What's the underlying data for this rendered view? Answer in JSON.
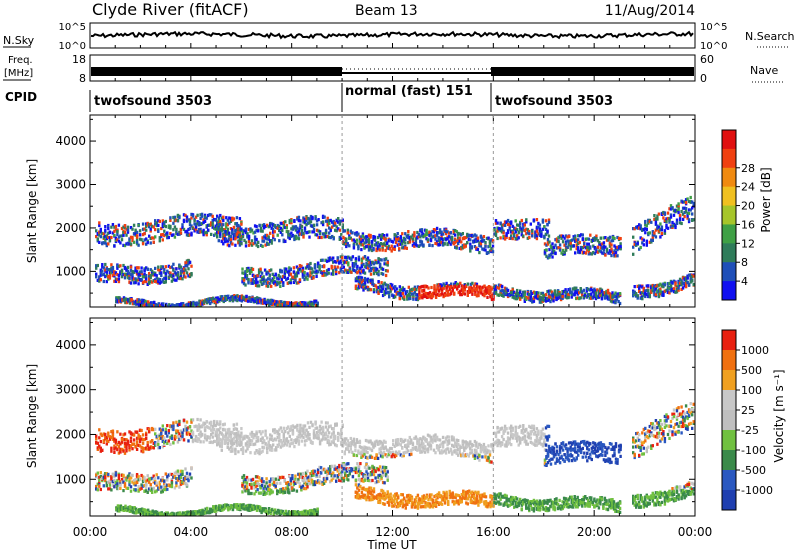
{
  "header": {
    "station": "Clyde River (fitACF)",
    "beam": "Beam 13",
    "date": "11/Aug/2014"
  },
  "top_panels": {
    "nsky_label": "N.Sky",
    "nsearch_label": "N.Search",
    "nsky_ticks": [
      "10^5",
      "10^0"
    ],
    "nsearch_ticks": [
      "10^5",
      "10^0"
    ],
    "freq_label": "Freq.",
    "freq_unit": "[MHz]",
    "freq_ticks": [
      "18",
      "8"
    ],
    "nave_label": "Nave",
    "nave_ticks": [
      "60",
      "0"
    ],
    "cpid_label": "CPID",
    "cpid_segments": [
      {
        "name": "twofsound 3503"
      },
      {
        "name": "normal (fast) 151"
      },
      {
        "name": "twofsound 3503"
      }
    ]
  },
  "chart_data": [
    {
      "type": "heatmap",
      "title": "",
      "ylabel": "Slant Range [km]",
      "xlabel": "",
      "ylim": [
        180,
        4600
      ],
      "yticks": [
        "1000",
        "2000",
        "3000",
        "4000"
      ],
      "colorbar_label": "Power [dB]",
      "colorbar_ticks": [
        "4",
        "8",
        "12",
        "16",
        "20",
        "24",
        "28"
      ],
      "colorbar_colors": [
        "#1010f0",
        "#1f4fb8",
        "#2f7c5a",
        "#3fa045",
        "#a6c52a",
        "#f0c020",
        "#f08a10",
        "#f04010",
        "#e01010"
      ]
    },
    {
      "type": "heatmap",
      "title": "",
      "ylabel": "Slant Range [km]",
      "xlabel": "Time UT",
      "ylim": [
        180,
        4600
      ],
      "yticks": [
        "1000",
        "2000",
        "3000",
        "4000"
      ],
      "xticks": [
        "00:00",
        "04:00",
        "08:00",
        "12:00",
        "16:00",
        "20:00",
        "00:00"
      ],
      "colorbar_label": "Velocity [m s⁻¹]",
      "colorbar_ticks": [
        "1000",
        "500",
        "100",
        "25",
        "-25",
        "-100",
        "-500",
        "-1000"
      ],
      "colorbar_colors": [
        "#1f3fb0",
        "#2a58c0",
        "#3a8a4a",
        "#70c040",
        "#bfbfbf",
        "#c8c8c8",
        "#f0a020",
        "#f07010",
        "#e82010"
      ]
    }
  ]
}
